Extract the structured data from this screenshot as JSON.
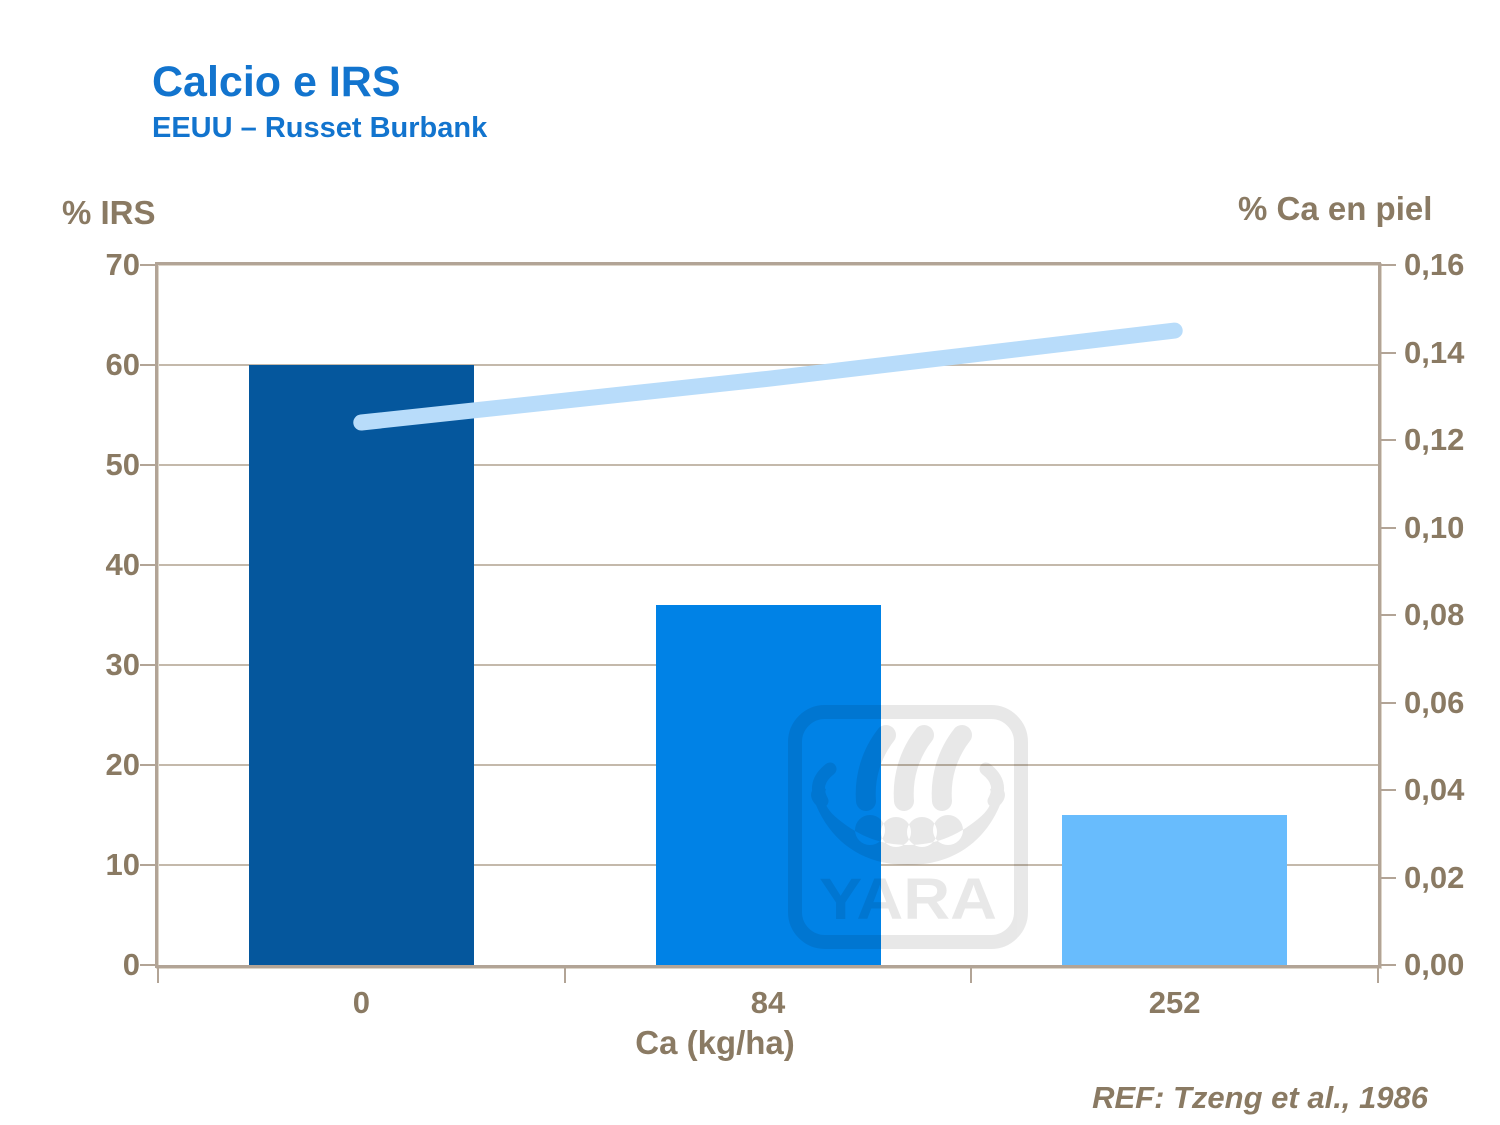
{
  "title": "Calcio e IRS",
  "subtitle": "EEUU – Russet Burbank",
  "reference": "REF: Tzeng et al., 1986",
  "watermark": {
    "text": "YARA",
    "icon": "viking-ship-logo",
    "opacity": 0.085
  },
  "colors": {
    "title_blue": "#1274CE",
    "axis_text": "#8A7A63",
    "frame": "#b2a496",
    "gridline": "#c4b9ab",
    "bars": [
      "#05579D",
      "#0082E6",
      "#68BCFD"
    ],
    "line": "#B8DCFA",
    "background": "#ffffff"
  },
  "chart_data": {
    "type": "bar",
    "title": "Calcio e IRS",
    "subtitle": "EEUU – Russet Burbank",
    "categories": [
      "0",
      "84",
      "252"
    ],
    "xlabel": "Ca (kg/ha)",
    "grid": "horizontal gridlines at left-axis steps of 10",
    "legend": "none",
    "series": [
      {
        "name": "% IRS",
        "type": "bar",
        "axis": "left",
        "values": [
          60,
          36,
          15
        ],
        "bar_colors": [
          "#05579D",
          "#0082E6",
          "#68BCFD"
        ]
      },
      {
        "name": "% Ca en piel",
        "type": "line",
        "axis": "right",
        "values": [
          0.124,
          0.134,
          0.145
        ],
        "color": "#B8DCFA"
      }
    ],
    "left_axis": {
      "label": "% IRS",
      "min": 0,
      "max": 70,
      "step": 10,
      "tick_labels": [
        "70",
        "60",
        "50",
        "40",
        "30",
        "20",
        "10",
        "0"
      ]
    },
    "right_axis": {
      "label": "% Ca en piel",
      "min": 0,
      "max": 0.16,
      "step": 0.02,
      "tick_labels": [
        "0,16",
        "0,14",
        "0,12",
        "0,10",
        "0,08",
        "0,06",
        "0,04",
        "0,02",
        "0,00"
      ]
    }
  }
}
